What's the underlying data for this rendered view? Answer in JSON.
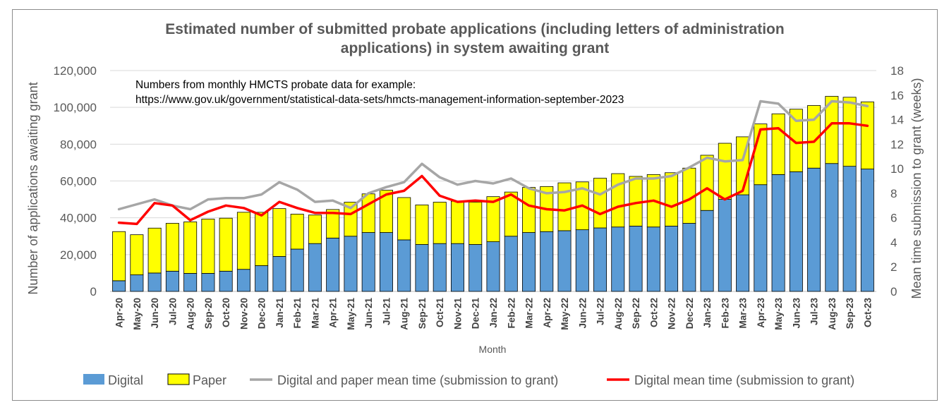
{
  "chart_data": {
    "type": "bar",
    "title": "Estimated number of submitted probate applications (including letters of administration applications) in system awaiting grant",
    "title_lines": [
      "Estimated number of submitted probate applications (including letters of administration",
      "applications) in system awaiting grant"
    ],
    "xlabel": "Month",
    "ylabel": "Number of applications awaiting grant",
    "y2label": "Mean time submission to grant (weeks)",
    "ylim": [
      0,
      120000
    ],
    "y2lim": [
      0,
      18
    ],
    "yticks": [
      "0",
      "20,000",
      "40,000",
      "60,000",
      "80,000",
      "100,000",
      "120,000"
    ],
    "y2ticks": [
      "0",
      "2",
      "4",
      "6",
      "8",
      "10",
      "12",
      "14",
      "16",
      "18"
    ],
    "annotation": [
      "Numbers from monthly HMCTS probate data for example:",
      "https://www.gov.uk/government/statistical-data-sets/hmcts-management-information-september-2023"
    ],
    "categories": [
      "Apr-20",
      "May-20",
      "Jun-20",
      "Jul-20",
      "Aug-20",
      "Sep-20",
      "Oct-20",
      "Nov-20",
      "Dec-20",
      "Jan-21",
      "Feb-21",
      "Mar-21",
      "Apr-21",
      "May-21",
      "Jun-21",
      "Jul-21",
      "Aug-21",
      "Sep-21",
      "Oct-21",
      "Nov-21",
      "Dec-21",
      "Jan-22",
      "Feb-22",
      "Mar-22",
      "Apr-22",
      "May-22",
      "Jun-22",
      "Jul-22",
      "Aug-22",
      "Sep-22",
      "Oct-22",
      "Nov-22",
      "Dec-22",
      "Jan-23",
      "Feb-23",
      "Mar-23",
      "Apr-23",
      "May-23",
      "Jun-23",
      "Jul-23",
      "Aug-23",
      "Sep-23",
      "Oct-23"
    ],
    "series": [
      {
        "name": "Digital",
        "kind": "stacked-bar",
        "axis": "left",
        "color": "#5b9bd5",
        "values": [
          5800,
          9000,
          10000,
          11000,
          9800,
          9800,
          11000,
          12000,
          14000,
          19000,
          23000,
          26000,
          29000,
          30000,
          32000,
          32000,
          28000,
          25500,
          26000,
          26000,
          25500,
          27000,
          30000,
          32000,
          32500,
          33000,
          33500,
          34500,
          35000,
          35500,
          35000,
          35500,
          37000,
          44000,
          50000,
          52500,
          58000,
          63500,
          65000,
          67000,
          69500,
          68000,
          66500
        ]
      },
      {
        "name": "Paper",
        "kind": "stacked-bar",
        "axis": "left",
        "color": "#ffff00",
        "values": [
          26700,
          21800,
          24400,
          26000,
          28000,
          29500,
          28800,
          31000,
          29000,
          26000,
          19000,
          15500,
          15500,
          18500,
          21000,
          23000,
          23000,
          21500,
          22500,
          23000,
          23000,
          24500,
          24000,
          24500,
          24500,
          26000,
          26000,
          27000,
          29000,
          27000,
          28500,
          29000,
          30000,
          30000,
          30500,
          31500,
          33000,
          33000,
          34000,
          34000,
          36500,
          37500,
          36500
        ]
      },
      {
        "name": "Digital and paper mean time (submission to grant)",
        "kind": "line",
        "axis": "right",
        "color": "#a6a6a6",
        "values": [
          6.7,
          7.1,
          7.5,
          7.0,
          6.7,
          7.5,
          7.6,
          7.6,
          7.9,
          8.9,
          8.3,
          7.3,
          7.4,
          6.8,
          8.0,
          8.5,
          8.9,
          10.4,
          9.3,
          8.7,
          9.0,
          8.8,
          9.2,
          8.4,
          8.0,
          8.1,
          8.4,
          7.9,
          8.7,
          9.2,
          9.2,
          9.4,
          10.1,
          10.9,
          10.6,
          10.7,
          15.5,
          15.3,
          13.9,
          14.0,
          15.5,
          15.4,
          15.1
        ]
      },
      {
        "name": "Digital mean time (submission to grant)",
        "kind": "line",
        "axis": "right",
        "color": "#ff0000",
        "values": [
          5.6,
          5.5,
          7.2,
          7.0,
          5.8,
          6.5,
          7.0,
          6.8,
          6.2,
          7.3,
          6.8,
          6.4,
          6.4,
          6.3,
          7.1,
          7.9,
          8.2,
          9.4,
          7.8,
          7.3,
          7.4,
          7.3,
          7.9,
          7.0,
          6.7,
          6.6,
          7.0,
          6.3,
          6.9,
          7.2,
          7.4,
          6.9,
          7.5,
          8.4,
          7.5,
          8.2,
          13.2,
          13.3,
          12.1,
          12.2,
          13.7,
          13.7,
          13.5
        ]
      }
    ],
    "legend": "bottom",
    "grid": true
  }
}
